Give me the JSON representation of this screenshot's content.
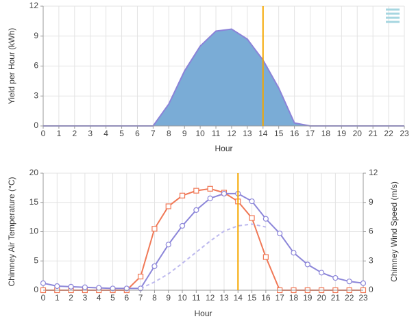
{
  "chart_data": [
    {
      "type": "area",
      "x": [
        0,
        1,
        2,
        3,
        4,
        5,
        6,
        7,
        8,
        9,
        10,
        11,
        12,
        13,
        14,
        15,
        16,
        17,
        18,
        19,
        20,
        21,
        22,
        23
      ],
      "values": [
        0,
        0,
        0,
        0,
        0,
        0,
        0,
        0,
        2.2,
        5.5,
        8,
        9.5,
        9.7,
        8.7,
        6.6,
        3.8,
        0.3,
        0,
        0,
        0,
        0,
        0,
        0,
        0
      ],
      "color": "#7aacd6",
      "line_color": "#8b82d8",
      "xlim": [
        0,
        23
      ],
      "xticks": [
        0,
        1,
        2,
        3,
        4,
        5,
        6,
        7,
        8,
        9,
        10,
        11,
        12,
        13,
        14,
        15,
        16,
        17,
        18,
        19,
        20,
        21,
        22,
        23
      ],
      "ylim": [
        0,
        12
      ],
      "yticks": [
        0,
        3,
        6,
        9,
        12
      ],
      "x_label": "Hour",
      "y_label": "Yield per Hour (kWh)",
      "grid": true,
      "marker_x": 14,
      "marker_color": "#f5a700"
    },
    {
      "type": "line",
      "x": [
        0,
        1,
        2,
        3,
        4,
        5,
        6,
        7,
        8,
        9,
        10,
        11,
        12,
        13,
        14,
        15,
        16,
        17,
        18,
        19,
        20,
        21,
        22,
        23
      ],
      "series": [
        {
          "color": "#f07856",
          "marker": "square",
          "axis": "y2",
          "values": [
            0,
            0,
            0,
            0,
            0,
            0,
            0,
            1.4,
            6.3,
            8.6,
            9.7,
            10.2,
            10.4,
            10,
            9.1,
            7.4,
            3.4,
            0,
            0,
            0,
            0,
            0,
            0,
            0
          ]
        },
        {
          "color": "#8c86d9",
          "marker": "circle",
          "values": [
            1.2,
            0.7,
            0.6,
            0.5,
            0.4,
            0.3,
            0.3,
            0.3,
            4.1,
            7.8,
            11,
            13.7,
            15.7,
            16.5,
            16.5,
            15.2,
            12.2,
            9.7,
            6.4,
            4.4,
            3,
            2.1,
            1.5,
            1.2
          ]
        },
        {
          "color": "#bcb8ee",
          "dashed": true,
          "values": [
            null,
            null,
            null,
            null,
            null,
            null,
            null,
            0.3,
            1.4,
            2.8,
            4.6,
            6.5,
            8.4,
            10.1,
            11,
            11.3,
            10.8,
            null,
            null,
            null,
            null,
            null,
            null,
            null
          ]
        }
      ],
      "xlim": [
        0,
        23
      ],
      "xticks": [
        0,
        1,
        2,
        3,
        4,
        5,
        6,
        7,
        8,
        9,
        10,
        11,
        12,
        13,
        14,
        15,
        16,
        17,
        18,
        19,
        20,
        21,
        22,
        23
      ],
      "ylim": [
        0,
        20
      ],
      "yticks": [
        0,
        5,
        10,
        15,
        20
      ],
      "y2lim": [
        0,
        12
      ],
      "y2ticks": [
        0,
        3,
        6,
        9,
        12
      ],
      "x_label": "Hour",
      "y_label": "Chimney Air Temperature (°C)",
      "y2_label": "Chimney Wind Speed (m/s)",
      "grid": true,
      "marker_x": 14,
      "marker_color": "#f5a700"
    }
  ]
}
